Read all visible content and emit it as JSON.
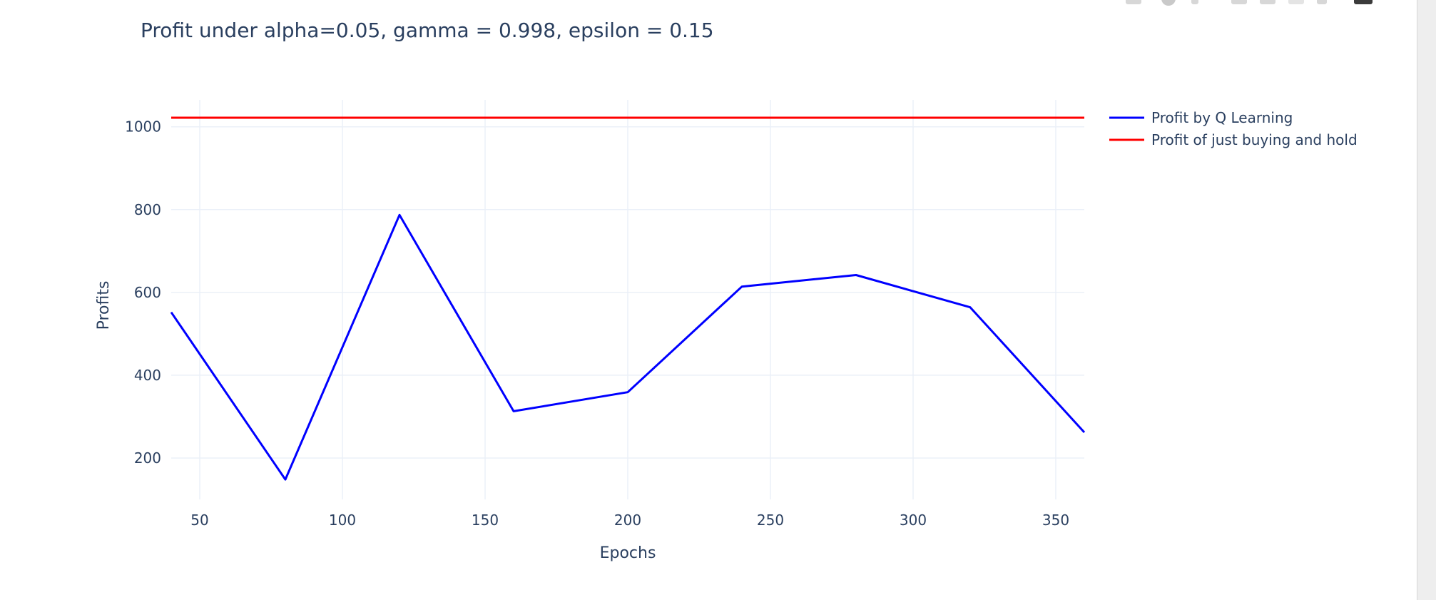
{
  "chart_data": {
    "type": "line",
    "title": "Profit under alpha=0.05, gamma = 0.998, epsilon = 0.15",
    "xlabel": "Epochs",
    "ylabel": "Profits",
    "xlim": [
      40,
      360
    ],
    "ylim": [
      100,
      1065
    ],
    "xticks": [
      50,
      100,
      150,
      200,
      250,
      300,
      350
    ],
    "yticks": [
      200,
      400,
      600,
      800,
      1000
    ],
    "grid": true,
    "legend_position": "top-right",
    "series": [
      {
        "name": "Profit by Q Learning",
        "color": "#0000ff",
        "x": [
          40,
          80,
          120,
          160,
          200,
          240,
          280,
          320,
          360
        ],
        "y": [
          552,
          148,
          787,
          313,
          359,
          614,
          642,
          564,
          262
        ]
      },
      {
        "name": "Profit of just buying and hold",
        "color": "#ff0000",
        "x": [
          40,
          360
        ],
        "y": [
          1022,
          1022
        ]
      }
    ]
  },
  "colors": {
    "text": "#2a3f5f",
    "grid": "#ebf0f8"
  },
  "modebar": {
    "icons": [
      "camera-icon",
      "zoom-icon",
      "pan-icon",
      "zoom-in-icon",
      "zoom-out-icon",
      "autoscale-icon",
      "reset-axes-icon",
      "plotly-logo-icon"
    ]
  }
}
